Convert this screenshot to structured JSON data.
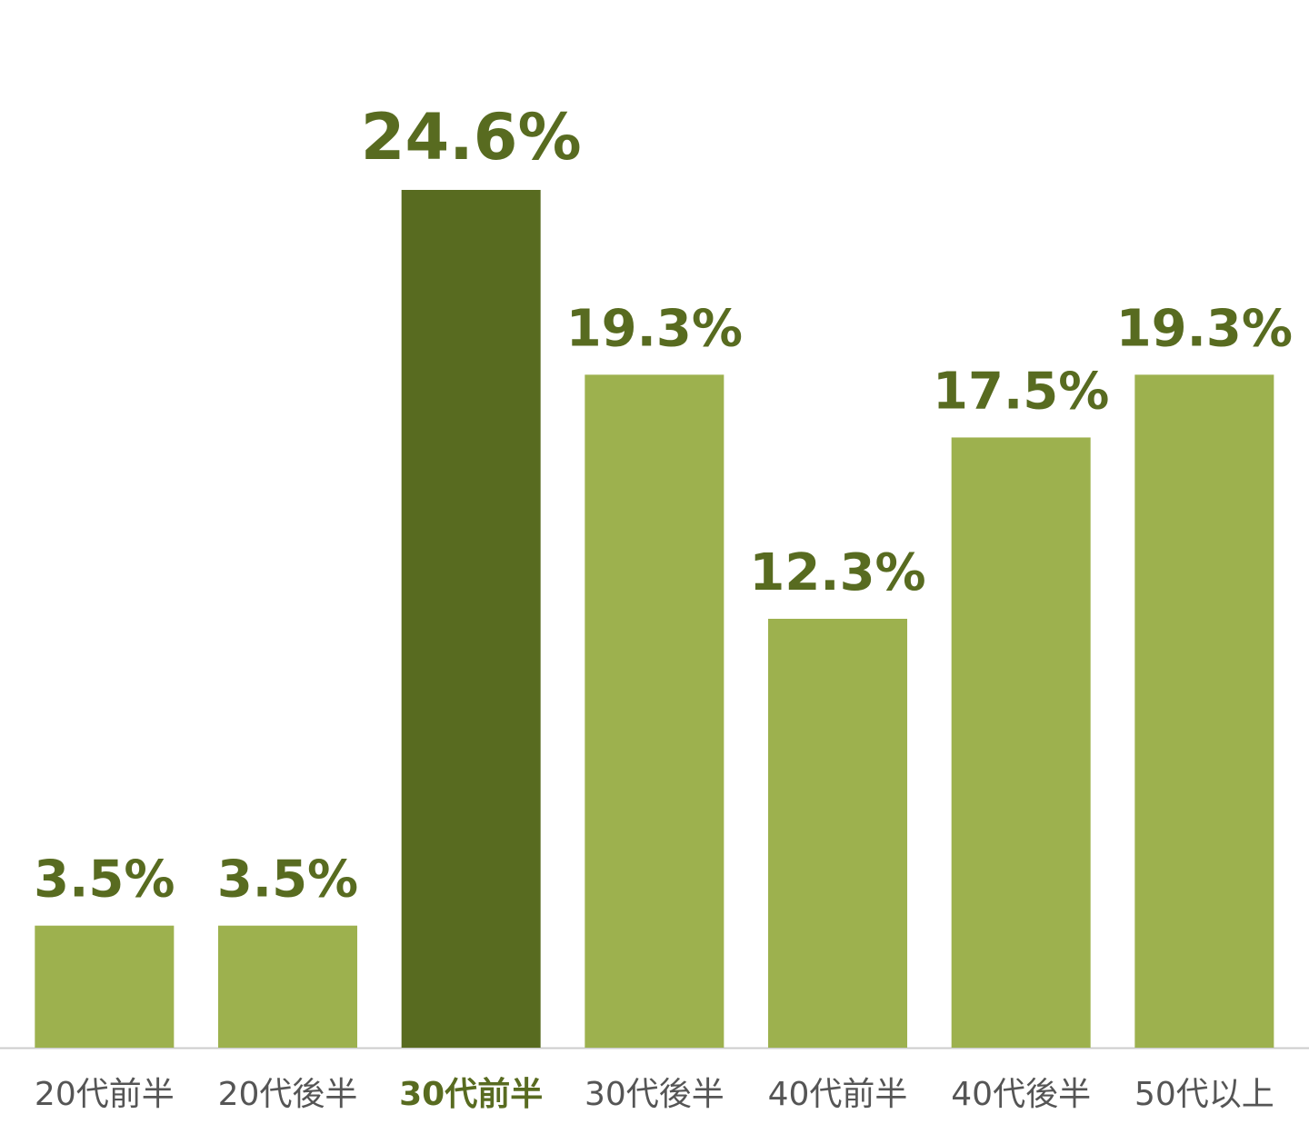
{
  "chart_data": {
    "type": "bar",
    "categories": [
      "20代前半",
      "20代後半",
      "30代前半",
      "30代後半",
      "40代前半",
      "40代後半",
      "50代以上"
    ],
    "values": [
      3.5,
      3.5,
      24.6,
      19.3,
      12.3,
      17.5,
      19.3
    ],
    "value_labels": [
      "3.5%",
      "3.5%",
      "24.6%",
      "19.3%",
      "12.3%",
      "17.5%",
      "19.3%"
    ],
    "color": "#9db14e",
    "highlight": 2,
    "highlight_color": "#586b20",
    "label_color": "#586b20"
  }
}
